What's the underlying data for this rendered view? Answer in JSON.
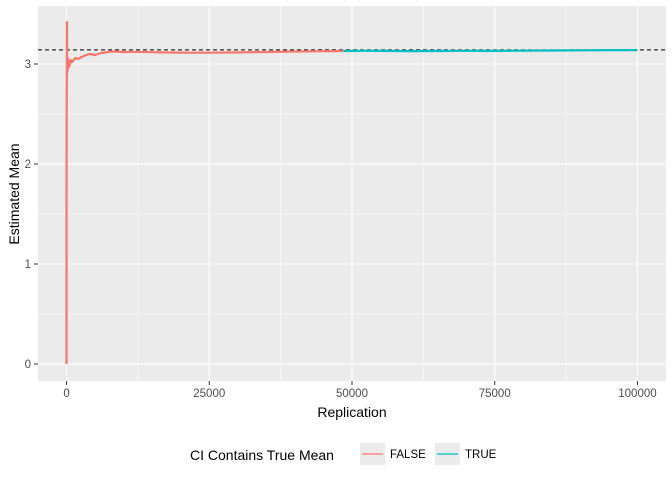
{
  "chart_data": {
    "type": "line",
    "title": "",
    "xlabel": "Replication",
    "ylabel": "Estimated Mean",
    "xlim": [
      -5000,
      105000
    ],
    "ylim": [
      -0.17,
      3.58
    ],
    "x_ticks": [
      0,
      25000,
      50000,
      75000,
      100000
    ],
    "x_tick_labels": [
      "0",
      "25000",
      "50000",
      "75000",
      "100000"
    ],
    "y_ticks": [
      0,
      1,
      2,
      3
    ],
    "y_tick_labels": [
      "0",
      "1",
      "2",
      "3"
    ],
    "grid": true,
    "reference_line": {
      "y": 3.14159,
      "style": "dashed",
      "color": "#000000"
    },
    "legend": {
      "title": "CI Contains True Mean",
      "placement": "bottom",
      "entries": [
        {
          "label": "FALSE",
          "color": "#F8766D"
        },
        {
          "label": "TRUE",
          "color": "#00BFC4"
        }
      ]
    },
    "series": [
      {
        "name": "FALSE",
        "color": "#F8766D",
        "x": [
          1,
          5,
          10,
          20,
          30,
          50,
          80,
          100,
          150,
          200,
          300,
          400,
          600,
          800,
          1000,
          1500,
          2000,
          3000,
          4000,
          5000,
          6000,
          8000,
          10000,
          12000,
          15000,
          18000,
          20000,
          25000,
          30000,
          35000,
          40000,
          45000,
          48500
        ],
        "y": [
          0.0,
          1.33,
          2.0,
          2.4,
          2.67,
          2.85,
          3.42,
          3.05,
          2.92,
          2.98,
          3.05,
          2.97,
          3.0,
          3.04,
          3.02,
          3.06,
          3.05,
          3.08,
          3.1,
          3.09,
          3.11,
          3.125,
          3.12,
          3.122,
          3.118,
          3.115,
          3.114,
          3.113,
          3.116,
          3.12,
          3.125,
          3.128,
          3.13
        ]
      },
      {
        "name": "TRUE",
        "color": "#00BFC4",
        "x": [
          48500,
          52000,
          55000,
          60000,
          65000,
          70000,
          75000,
          80000,
          85000,
          90000,
          95000,
          100000
        ],
        "y": [
          3.13,
          3.132,
          3.131,
          3.129,
          3.13,
          3.132,
          3.131,
          3.133,
          3.135,
          3.137,
          3.138,
          3.139
        ]
      }
    ]
  }
}
